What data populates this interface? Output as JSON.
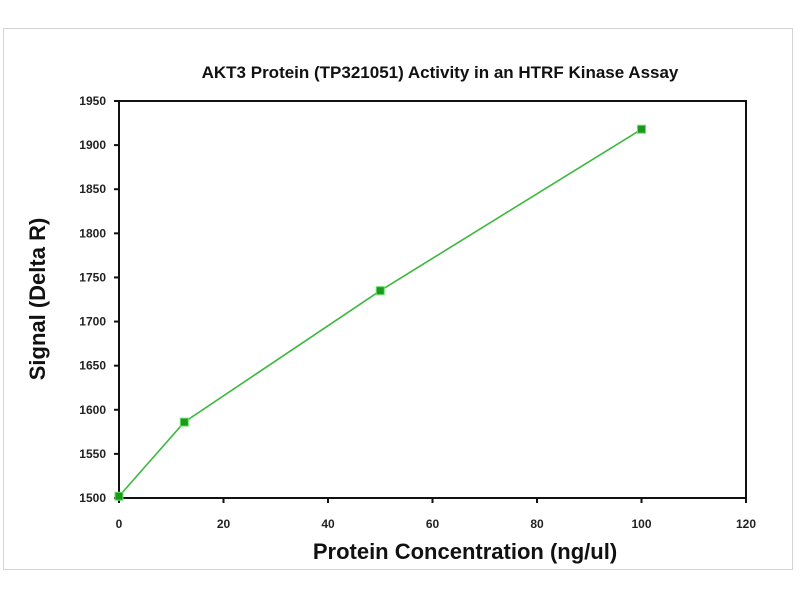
{
  "chart_data": {
    "type": "line",
    "title": "AKT3 Protein (TP321051)  Activity in an HTRF Kinase Assay",
    "xlabel": "Protein Concentration  (ng/ul)",
    "ylabel": "Signal (Delta R)",
    "xlim": [
      0,
      120
    ],
    "ylim": [
      1500,
      1950
    ],
    "xticks": [
      0,
      20,
      40,
      60,
      80,
      100,
      120
    ],
    "yticks": [
      1500,
      1550,
      1600,
      1650,
      1700,
      1750,
      1800,
      1850,
      1900,
      1950
    ],
    "grid": false,
    "legend": "none",
    "series": [
      {
        "name": "AKT3",
        "color": "#3cb83c",
        "marker_color": "#1a9a1a",
        "x": [
          0,
          12.5,
          50,
          100
        ],
        "y": [
          1502,
          1586,
          1735,
          1918
        ]
      }
    ]
  }
}
